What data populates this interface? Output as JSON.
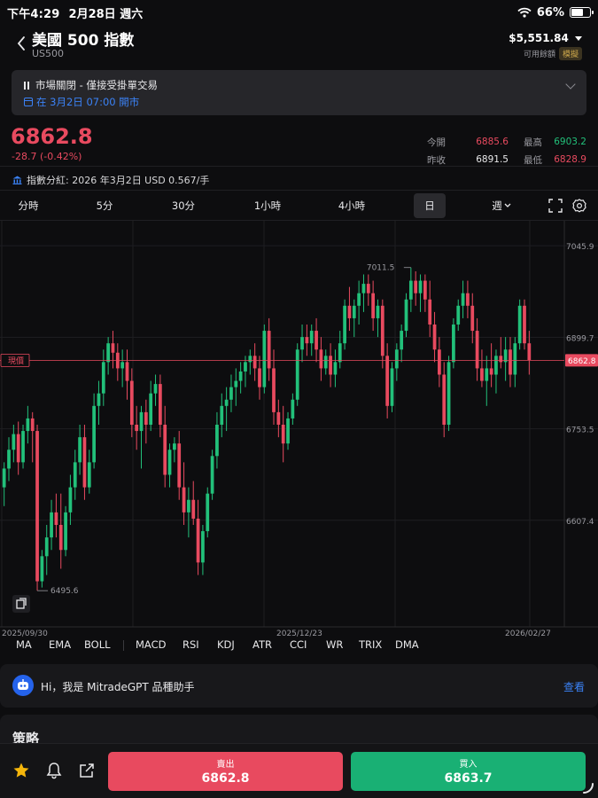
{
  "status": {
    "time": "下午4:29",
    "date": "2月28日 週六",
    "battery": "66%"
  },
  "header": {
    "title": "美國 500 指數",
    "symbol": "US500",
    "balance": "$5,551.84",
    "balance_label": "可用餘額",
    "mode_badge": "模擬"
  },
  "banner": {
    "status": "市場關閉 - 僅接受掛單交易",
    "open_time": "在 3月2日 07:00 開市"
  },
  "quote": {
    "price": "6862.8",
    "change": "-28.7 (-0.42%)",
    "open_label": "今開",
    "open": "6885.6",
    "high_label": "最高",
    "high": "6903.2",
    "prev_close_label": "昨收",
    "prev_close": "6891.5",
    "low_label": "最低",
    "low": "6828.9"
  },
  "dividend": "指數分紅: 2026 年3月2日 USD 0.567/手",
  "timeframes": [
    "分時",
    "5分",
    "30分",
    "1小時",
    "4小時",
    "日",
    "週"
  ],
  "active_timeframe": "日",
  "indicators": [
    "MA",
    "EMA",
    "BOLL",
    "MACD",
    "RSI",
    "KDJ",
    "ATR",
    "CCI",
    "WR",
    "TRIX",
    "DMA"
  ],
  "chart_data": {
    "type": "candlestick",
    "y_ticks": [
      7045.9,
      6899.7,
      6753.5,
      6607.4
    ],
    "x_ticks": [
      "2025/09/30",
      "2025/12/23",
      "2026/02/27"
    ],
    "ylim": [
      6440,
      7080
    ],
    "current_price": 6862.8,
    "current_price_label": "現價",
    "max_annotation": "7011.5",
    "min_annotation": "6495.6",
    "candles": [
      {
        "o": 6660,
        "h": 6700,
        "l": 6630,
        "c": 6690
      },
      {
        "o": 6690,
        "h": 6740,
        "l": 6670,
        "c": 6720
      },
      {
        "o": 6720,
        "h": 6760,
        "l": 6700,
        "c": 6745
      },
      {
        "o": 6745,
        "h": 6765,
        "l": 6680,
        "c": 6700
      },
      {
        "o": 6700,
        "h": 6760,
        "l": 6690,
        "c": 6750
      },
      {
        "o": 6750,
        "h": 6790,
        "l": 6730,
        "c": 6770
      },
      {
        "o": 6770,
        "h": 6780,
        "l": 6700,
        "c": 6750
      },
      {
        "o": 6750,
        "h": 6760,
        "l": 6495,
        "c": 6510
      },
      {
        "o": 6510,
        "h": 6560,
        "l": 6500,
        "c": 6550
      },
      {
        "o": 6550,
        "h": 6600,
        "l": 6520,
        "c": 6580
      },
      {
        "o": 6580,
        "h": 6640,
        "l": 6560,
        "c": 6620
      },
      {
        "o": 6620,
        "h": 6650,
        "l": 6580,
        "c": 6600
      },
      {
        "o": 6600,
        "h": 6650,
        "l": 6530,
        "c": 6560
      },
      {
        "o": 6560,
        "h": 6630,
        "l": 6550,
        "c": 6620
      },
      {
        "o": 6620,
        "h": 6680,
        "l": 6600,
        "c": 6660
      },
      {
        "o": 6660,
        "h": 6720,
        "l": 6640,
        "c": 6700
      },
      {
        "o": 6700,
        "h": 6760,
        "l": 6680,
        "c": 6740
      },
      {
        "o": 6740,
        "h": 6760,
        "l": 6640,
        "c": 6660
      },
      {
        "o": 6660,
        "h": 6720,
        "l": 6650,
        "c": 6700
      },
      {
        "o": 6700,
        "h": 6810,
        "l": 6690,
        "c": 6790
      },
      {
        "o": 6790,
        "h": 6830,
        "l": 6760,
        "c": 6810
      },
      {
        "o": 6810,
        "h": 6880,
        "l": 6790,
        "c": 6860
      },
      {
        "o": 6860,
        "h": 6900,
        "l": 6840,
        "c": 6890
      },
      {
        "o": 6890,
        "h": 6910,
        "l": 6850,
        "c": 6875
      },
      {
        "o": 6875,
        "h": 6890,
        "l": 6830,
        "c": 6850
      },
      {
        "o": 6850,
        "h": 6880,
        "l": 6820,
        "c": 6860
      },
      {
        "o": 6860,
        "h": 6880,
        "l": 6800,
        "c": 6830
      },
      {
        "o": 6830,
        "h": 6850,
        "l": 6740,
        "c": 6760
      },
      {
        "o": 6760,
        "h": 6790,
        "l": 6720,
        "c": 6750
      },
      {
        "o": 6750,
        "h": 6790,
        "l": 6690,
        "c": 6780
      },
      {
        "o": 6780,
        "h": 6800,
        "l": 6730,
        "c": 6760
      },
      {
        "o": 6760,
        "h": 6830,
        "l": 6750,
        "c": 6810
      },
      {
        "o": 6810,
        "h": 6840,
        "l": 6790,
        "c": 6825
      },
      {
        "o": 6825,
        "h": 6840,
        "l": 6740,
        "c": 6760
      },
      {
        "o": 6760,
        "h": 6790,
        "l": 6660,
        "c": 6680
      },
      {
        "o": 6680,
        "h": 6730,
        "l": 6660,
        "c": 6720
      },
      {
        "o": 6720,
        "h": 6740,
        "l": 6700,
        "c": 6730
      },
      {
        "o": 6730,
        "h": 6750,
        "l": 6640,
        "c": 6660
      },
      {
        "o": 6660,
        "h": 6700,
        "l": 6600,
        "c": 6620
      },
      {
        "o": 6620,
        "h": 6660,
        "l": 6580,
        "c": 6640
      },
      {
        "o": 6640,
        "h": 6670,
        "l": 6600,
        "c": 6610
      },
      {
        "o": 6610,
        "h": 6640,
        "l": 6520,
        "c": 6540
      },
      {
        "o": 6540,
        "h": 6600,
        "l": 6520,
        "c": 6590
      },
      {
        "o": 6590,
        "h": 6660,
        "l": 6580,
        "c": 6650
      },
      {
        "o": 6650,
        "h": 6720,
        "l": 6640,
        "c": 6710
      },
      {
        "o": 6710,
        "h": 6780,
        "l": 6690,
        "c": 6760
      },
      {
        "o": 6760,
        "h": 6810,
        "l": 6740,
        "c": 6790
      },
      {
        "o": 6790,
        "h": 6820,
        "l": 6750,
        "c": 6800
      },
      {
        "o": 6800,
        "h": 6840,
        "l": 6780,
        "c": 6820
      },
      {
        "o": 6820,
        "h": 6850,
        "l": 6790,
        "c": 6830
      },
      {
        "o": 6830,
        "h": 6860,
        "l": 6810,
        "c": 6845
      },
      {
        "o": 6845,
        "h": 6870,
        "l": 6820,
        "c": 6860
      },
      {
        "o": 6860,
        "h": 6880,
        "l": 6840,
        "c": 6870
      },
      {
        "o": 6870,
        "h": 6890,
        "l": 6830,
        "c": 6850
      },
      {
        "o": 6850,
        "h": 6870,
        "l": 6800,
        "c": 6820
      },
      {
        "o": 6820,
        "h": 6920,
        "l": 6810,
        "c": 6910
      },
      {
        "o": 6910,
        "h": 6930,
        "l": 6830,
        "c": 6850
      },
      {
        "o": 6850,
        "h": 6880,
        "l": 6760,
        "c": 6780
      },
      {
        "o": 6780,
        "h": 6800,
        "l": 6740,
        "c": 6760
      },
      {
        "o": 6760,
        "h": 6790,
        "l": 6700,
        "c": 6730
      },
      {
        "o": 6730,
        "h": 6780,
        "l": 6720,
        "c": 6770
      },
      {
        "o": 6770,
        "h": 6810,
        "l": 6760,
        "c": 6800
      },
      {
        "o": 6800,
        "h": 6890,
        "l": 6790,
        "c": 6880
      },
      {
        "o": 6880,
        "h": 6920,
        "l": 6860,
        "c": 6900
      },
      {
        "o": 6900,
        "h": 6920,
        "l": 6870,
        "c": 6890
      },
      {
        "o": 6890,
        "h": 6920,
        "l": 6870,
        "c": 6910
      },
      {
        "o": 6910,
        "h": 6930,
        "l": 6860,
        "c": 6880
      },
      {
        "o": 6880,
        "h": 6900,
        "l": 6830,
        "c": 6850
      },
      {
        "o": 6850,
        "h": 6880,
        "l": 6840,
        "c": 6870
      },
      {
        "o": 6870,
        "h": 6890,
        "l": 6820,
        "c": 6840
      },
      {
        "o": 6840,
        "h": 6880,
        "l": 6820,
        "c": 6860
      },
      {
        "o": 6860,
        "h": 6910,
        "l": 6850,
        "c": 6890
      },
      {
        "o": 6890,
        "h": 6960,
        "l": 6880,
        "c": 6950
      },
      {
        "o": 6950,
        "h": 6980,
        "l": 6910,
        "c": 6930
      },
      {
        "o": 6930,
        "h": 6960,
        "l": 6900,
        "c": 6950
      },
      {
        "o": 6950,
        "h": 6990,
        "l": 6920,
        "c": 6970
      },
      {
        "o": 6970,
        "h": 7000,
        "l": 6940,
        "c": 6985
      },
      {
        "o": 6985,
        "h": 7000,
        "l": 6950,
        "c": 6970
      },
      {
        "o": 6970,
        "h": 6990,
        "l": 6910,
        "c": 6930
      },
      {
        "o": 6930,
        "h": 6960,
        "l": 6900,
        "c": 6950
      },
      {
        "o": 6950,
        "h": 6960,
        "l": 6850,
        "c": 6870
      },
      {
        "o": 6870,
        "h": 6890,
        "l": 6770,
        "c": 6790
      },
      {
        "o": 6790,
        "h": 6860,
        "l": 6780,
        "c": 6850
      },
      {
        "o": 6850,
        "h": 6890,
        "l": 6830,
        "c": 6880
      },
      {
        "o": 6880,
        "h": 6920,
        "l": 6860,
        "c": 6910
      },
      {
        "o": 6910,
        "h": 6970,
        "l": 6900,
        "c": 6960
      },
      {
        "o": 6960,
        "h": 7011,
        "l": 6940,
        "c": 6990
      },
      {
        "o": 6990,
        "h": 7005,
        "l": 6950,
        "c": 6970
      },
      {
        "o": 6970,
        "h": 7000,
        "l": 6940,
        "c": 6990
      },
      {
        "o": 6990,
        "h": 7000,
        "l": 6940,
        "c": 6960
      },
      {
        "o": 6960,
        "h": 6990,
        "l": 6900,
        "c": 6920
      },
      {
        "o": 6920,
        "h": 6940,
        "l": 6860,
        "c": 6880
      },
      {
        "o": 6880,
        "h": 6900,
        "l": 6820,
        "c": 6840
      },
      {
        "o": 6840,
        "h": 6860,
        "l": 6740,
        "c": 6760
      },
      {
        "o": 6760,
        "h": 6870,
        "l": 6750,
        "c": 6860
      },
      {
        "o": 6860,
        "h": 6930,
        "l": 6850,
        "c": 6920
      },
      {
        "o": 6920,
        "h": 6960,
        "l": 6910,
        "c": 6950
      },
      {
        "o": 6950,
        "h": 6990,
        "l": 6930,
        "c": 6970
      },
      {
        "o": 6970,
        "h": 6990,
        "l": 6930,
        "c": 6950
      },
      {
        "o": 6950,
        "h": 6970,
        "l": 6890,
        "c": 6910
      },
      {
        "o": 6910,
        "h": 6930,
        "l": 6830,
        "c": 6850
      },
      {
        "o": 6850,
        "h": 6880,
        "l": 6820,
        "c": 6830
      },
      {
        "o": 6830,
        "h": 6870,
        "l": 6790,
        "c": 6850
      },
      {
        "o": 6850,
        "h": 6890,
        "l": 6820,
        "c": 6840
      },
      {
        "o": 6840,
        "h": 6880,
        "l": 6810,
        "c": 6870
      },
      {
        "o": 6870,
        "h": 6900,
        "l": 6850,
        "c": 6860
      },
      {
        "o": 6860,
        "h": 6900,
        "l": 6830,
        "c": 6880
      },
      {
        "o": 6880,
        "h": 6900,
        "l": 6820,
        "c": 6840
      },
      {
        "o": 6840,
        "h": 6900,
        "l": 6820,
        "c": 6890
      },
      {
        "o": 6890,
        "h": 6960,
        "l": 6880,
        "c": 6950
      },
      {
        "o": 6950,
        "h": 6960,
        "l": 6880,
        "c": 6890
      },
      {
        "o": 6890,
        "h": 6910,
        "l": 6840,
        "c": 6862.8
      }
    ]
  },
  "gpt": {
    "greeting": "Hi，我是 MitradeGPT 品種助手",
    "link": "查看"
  },
  "strategy_title": "策略",
  "actions": {
    "sell_label": "賣出",
    "sell_price": "6862.8",
    "buy_label": "買入",
    "buy_price": "6863.7"
  },
  "colors": {
    "up": "#22c07a",
    "down": "#e84a5f",
    "accent": "#3b82f6"
  }
}
